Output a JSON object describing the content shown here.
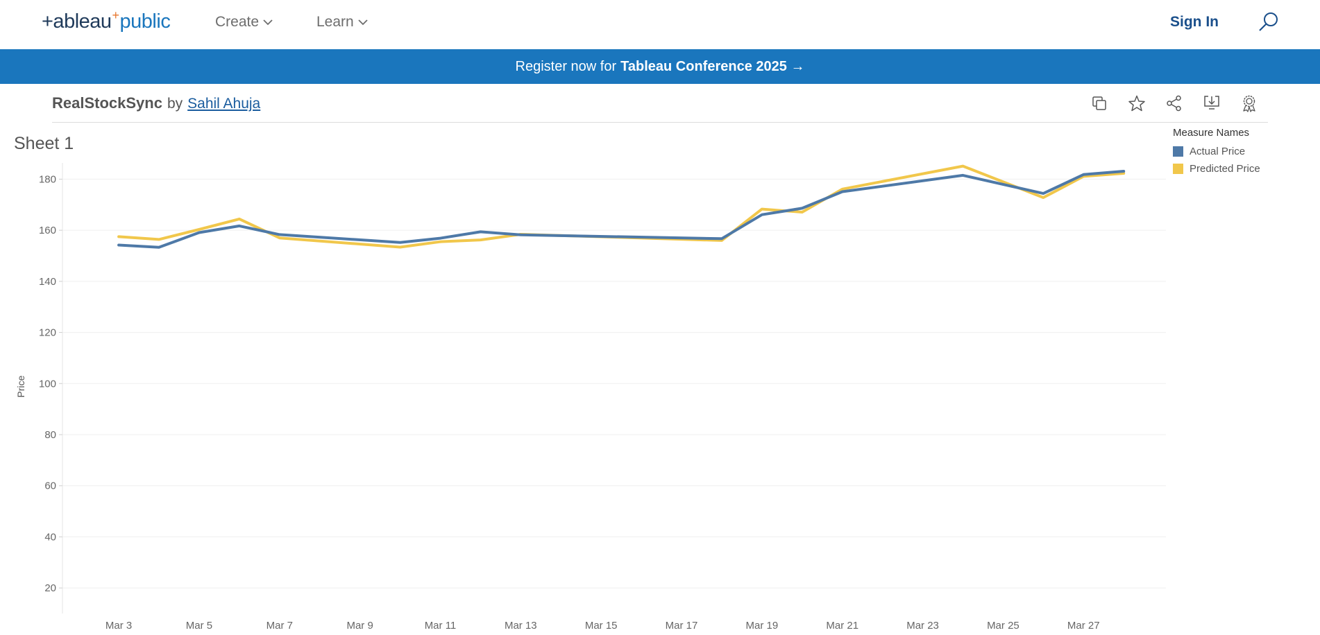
{
  "nav": {
    "logo_left": "+ableau",
    "logo_spark": "+",
    "logo_right": "public",
    "create_label": "Create",
    "learn_label": "Learn",
    "signin_label": "Sign In"
  },
  "banner": {
    "prefix": "Register now for",
    "bold": "Tableau Conference 2025 →"
  },
  "viz": {
    "name": "RealStockSync",
    "by": "by",
    "author": "Sahil Ahuja",
    "sheet_title": "Sheet 1"
  },
  "tools": [
    "copy-icon",
    "star-icon",
    "share-icon",
    "download-icon",
    "badge-icon"
  ],
  "legend": {
    "title": "Measure Names",
    "items": [
      {
        "label": "Actual Price",
        "color": "#4e79a7"
      },
      {
        "label": "Predicted Price",
        "color": "#f1c74b"
      }
    ]
  },
  "chart_data": {
    "type": "line",
    "title": "Sheet 1",
    "xlabel": "",
    "ylabel": "Price",
    "ylim": [
      10,
      185
    ],
    "yticks": [
      20,
      40,
      60,
      80,
      100,
      120,
      140,
      160,
      180
    ],
    "xticks": [
      "Mar 3",
      "Mar 5",
      "Mar 7",
      "Mar 9",
      "Mar 11",
      "Mar 13",
      "Mar 15",
      "Mar 17",
      "Mar 19",
      "Mar 21",
      "Mar 23",
      "Mar 25",
      "Mar 27"
    ],
    "x": [
      3,
      4,
      5,
      6,
      7,
      10,
      11,
      12,
      13,
      18,
      19,
      20,
      21,
      24,
      26,
      27,
      28
    ],
    "x_labels": [
      "Mar 3",
      "Mar 4",
      "Mar 5",
      "Mar 6",
      "Mar 7",
      "Mar 10",
      "Mar 11",
      "Mar 12",
      "Mar 13",
      "Mar 18",
      "Mar 19",
      "Mar 20",
      "Mar 21",
      "Mar 24",
      "Mar 26",
      "Mar 27",
      "Mar 28"
    ],
    "grid": true,
    "legend_position": "top-right",
    "series": [
      {
        "name": "Actual Price",
        "color": "#4e79a7",
        "values": [
          154.2,
          153.3,
          159.1,
          161.7,
          158.3,
          155.2,
          156.9,
          159.4,
          158.2,
          156.7,
          166.1,
          168.6,
          175.1,
          181.5,
          174.4,
          181.8,
          183.1
        ]
      },
      {
        "name": "Predicted Price",
        "color": "#f1c74b",
        "values": [
          157.5,
          156.4,
          160.3,
          164.4,
          157.0,
          153.4,
          155.5,
          156.2,
          158.4,
          156.0,
          168.3,
          167.1,
          176.1,
          185.1,
          172.8,
          181.1,
          182.3
        ]
      }
    ]
  }
}
